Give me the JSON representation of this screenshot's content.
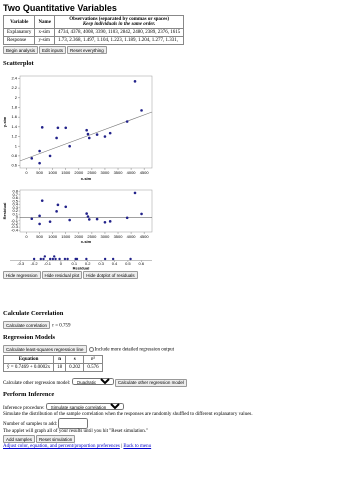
{
  "header": {
    "title": "Two Quantitative Variables"
  },
  "data_table": {
    "headers": [
      "Variable",
      "Name",
      "Observations (separated by commas or spaces)",
      "Keep individuals in the same order."
    ],
    "rows": [
      [
        "Explanatory",
        "x-sim",
        "4734, 4378, 4008, 3390, 1103, 2842, 2480, 2389, 2376, 1615"
      ],
      [
        "Response",
        "y-sim",
        "1.73, 2.368, 1.497, 1.104, 1.223, 1.189, 1.204, 1.277, 1.331,"
      ]
    ]
  },
  "top_buttons": [
    "Begin analysis",
    "Edit inputs",
    "Reset everything"
  ],
  "scatterplot": {
    "heading": "Scatterplot",
    "x_label": "x-sim",
    "y_label": "y-sim",
    "x": [
      200,
      500,
      500,
      600,
      900,
      1150,
      1200,
      1500,
      1650,
      2300,
      2350,
      2400,
      2700,
      3000,
      3200,
      3850,
      4150,
      4400
    ],
    "y": [
      0.75,
      0.9,
      0.65,
      1.39,
      0.8,
      1.17,
      1.38,
      1.38,
      1.0,
      1.33,
      1.25,
      1.17,
      1.24,
      1.2,
      1.27,
      1.51,
      2.34,
      1.74
    ],
    "xlim": [
      -250,
      4800
    ],
    "ylim": [
      0.55,
      2.45
    ],
    "xticks": [
      0,
      500,
      1000,
      1500,
      2000,
      2500,
      3000,
      3500,
      4000,
      4500
    ],
    "yticks": [
      0.6,
      0.8,
      1,
      1.2,
      1.4,
      1.6,
      1.8,
      2,
      2.2,
      2.4
    ],
    "line": {
      "intercept": 0.7469,
      "slope": 0.0002
    }
  },
  "residual_plot": {
    "y_label": "Residual",
    "x_label": "x-sim",
    "residuals": [
      -0.04,
      0.05,
      -0.2,
      0.52,
      -0.13,
      0.19,
      0.39,
      0.33,
      -0.08,
      0.12,
      0.03,
      -0.06,
      -0.05,
      -0.15,
      -0.12,
      -0.01,
      0.76,
      0.11
    ],
    "ylim": [
      -0.45,
      0.85
    ],
    "yticks": [
      -0.4,
      -0.3,
      -0.2,
      -0.1,
      0,
      0.1,
      0.2,
      0.3,
      0.4,
      0.5,
      0.6,
      0.7,
      0.8
    ]
  },
  "dotplot": {
    "x_label": "Residual",
    "xlim": [
      -0.38,
      0.68
    ],
    "xticks": [
      -0.3,
      -0.2,
      -0.1,
      0,
      0.1,
      0.2,
      0.3,
      0.4,
      0.5,
      0.6
    ]
  },
  "plot_buttons": [
    "Hide regression",
    "Hide residual plot",
    "Hide dotplot of residuals"
  ],
  "correlation": {
    "heading": "Calculate Correlation",
    "button": "Calculate correlation",
    "result": "r = 0.759"
  },
  "regression": {
    "heading": "Regression Models",
    "button": "Calculate least-squares regression line",
    "checkbox": "Include more detailed regression output",
    "table": {
      "headers": [
        "Equation",
        "n",
        "s",
        "r²"
      ],
      "row": [
        "ŷ = 0.7469 + 0.0002x",
        "18",
        "0.202",
        "0.576"
      ]
    },
    "other_label": "Calculate other regression model:",
    "other_select": "Quadratic",
    "other_button": "Calculate other regression model"
  },
  "inference": {
    "heading": "Perform Inference",
    "procedure_label": "Inference procedure:",
    "procedure_select": "Simulate sample correlation",
    "description": "Simulate the distribution of the sample correlation when the responses are randomly shuffled to different explanatory values.",
    "samples_label": "Number of samples to add:",
    "note": "The applet will graph all of your results until you hit \"Reset simulation.\"",
    "buttons": [
      "Add samples",
      "Reset simulation"
    ]
  },
  "footer": {
    "links": [
      "Adjust color, equation, and percent/proportion preferences",
      "Back to menu"
    ],
    "separator": "|"
  }
}
